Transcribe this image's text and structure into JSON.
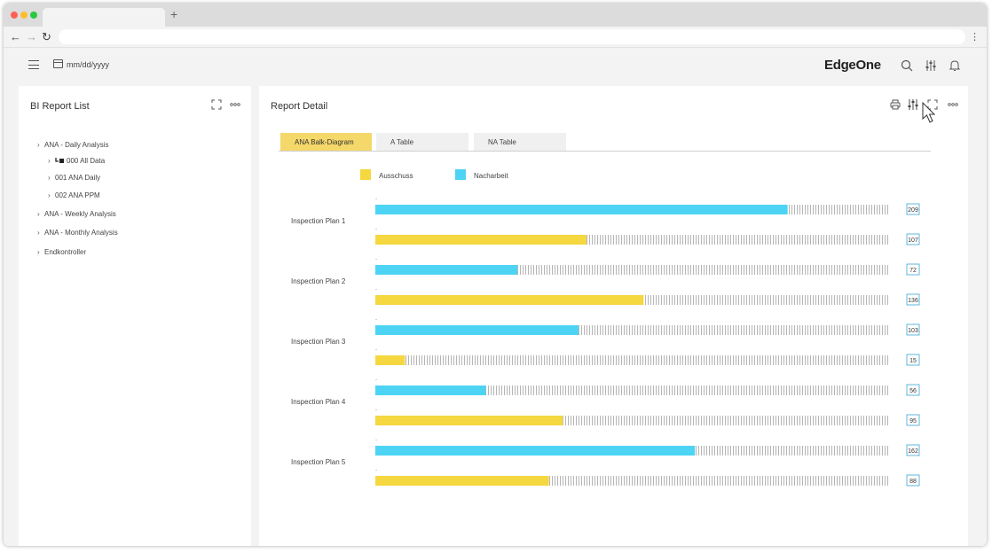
{
  "app": {
    "brand": "EdgeOne",
    "date_placeholder": "mm/dd/yyyy",
    "new_tab": "+"
  },
  "left_panel": {
    "title": "BI Report List",
    "tree": [
      {
        "label": "ANA - Daily Analysis",
        "level": 0
      },
      {
        "label": "000 All Data",
        "level": 1,
        "icon": "folder-link-icon"
      },
      {
        "label": "001 ANA Daily",
        "level": 1
      },
      {
        "label": "002 ANA PPM",
        "level": 1
      },
      {
        "label": "ANA - Weekly Analysis",
        "level": 0
      },
      {
        "label": "ANA - Monthly Analysis",
        "level": 0
      },
      {
        "label": "Endkontroller",
        "level": 0
      }
    ]
  },
  "right_panel": {
    "title": "Report Detail",
    "tabs": [
      {
        "label": "ANA Balk-Diagram",
        "active": true
      },
      {
        "label": "A Table",
        "active": false
      },
      {
        "label": "NA Table",
        "active": false
      }
    ]
  },
  "chart_data": {
    "type": "bar",
    "orientation": "horizontal",
    "categories": [
      "Inspection Plan 1",
      "Inspection Plan 2",
      "Inspection Plan 3",
      "Inspection Plan 4",
      "Inspection Plan 5"
    ],
    "series": [
      {
        "name": "Nacharbeit",
        "color": "#4dd4f5",
        "values": [
          209,
          72,
          103,
          56,
          162
        ]
      },
      {
        "name": "Ausschuss",
        "color": "#f5d73f",
        "values": [
          107,
          136,
          15,
          95,
          88
        ]
      }
    ],
    "legend": "top-left",
    "grid": false
  },
  "icons": {
    "hamburger": "menu-icon",
    "calendar": "calendar-icon",
    "search": "search-icon",
    "filter": "sliders-icon",
    "bell": "bell-icon",
    "expand": "expand-icon",
    "more": "more-icon",
    "print": "print-icon",
    "cursor": "mouse-cursor-icon"
  }
}
